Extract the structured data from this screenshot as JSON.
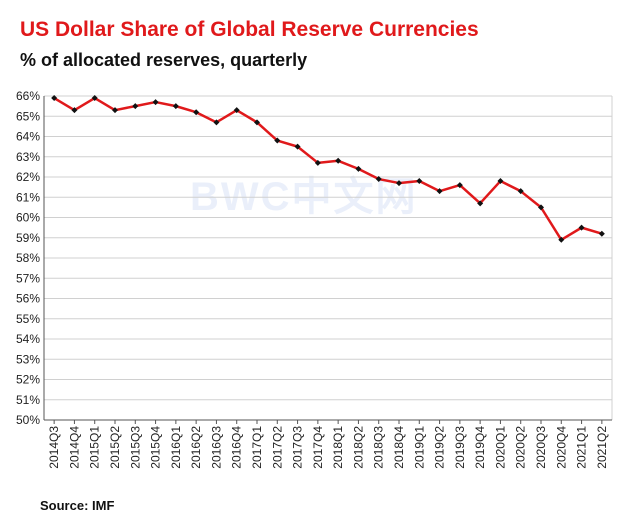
{
  "header": {
    "title": "US Dollar Share of Global  Reserve Currencies",
    "subtitle": "% of allocated reserves, quarterly"
  },
  "footer": {
    "source": "Source: IMF"
  },
  "watermark": "BWC中文网",
  "colors": {
    "title": "#e0191b",
    "line": "#e0191b",
    "marker": "#111111",
    "grid": "#d0d0d0"
  },
  "chart_data": {
    "type": "line",
    "title": "US Dollar Share of Global  Reserve Currencies",
    "subtitle": "% of allocated reserves, quarterly",
    "xlabel": "",
    "ylabel": "",
    "ylim": [
      50,
      66
    ],
    "yticks": [
      "50%",
      "51%",
      "52%",
      "53%",
      "54%",
      "55%",
      "56%",
      "57%",
      "58%",
      "59%",
      "60%",
      "61%",
      "62%",
      "63%",
      "64%",
      "65%",
      "66%"
    ],
    "grid": true,
    "legend": "none",
    "categories": [
      "2014Q3",
      "2014Q4",
      "2015Q1",
      "2015Q2",
      "2015Q3",
      "2015Q4",
      "2016Q1",
      "2016Q2",
      "2016Q3",
      "2016Q4",
      "2017Q1",
      "2017Q2",
      "2017Q3",
      "2017Q4",
      "2018Q1",
      "2018Q2",
      "2018Q3",
      "2018Q4",
      "2019Q1",
      "2019Q2",
      "2019Q3",
      "2019Q4",
      "2020Q1",
      "2020Q2",
      "2020Q3",
      "2020Q4",
      "2021Q1",
      "2021Q2"
    ],
    "visible_tick_labels": [
      "2014Q3",
      "2014Q4",
      "2015Q1",
      "2015Q2",
      "2015Q3",
      "2015Q4",
      "2016Q1",
      "2016Q2",
      "2016Q3",
      "2016Q4",
      "2017Q1",
      "2017Q2",
      "2017Q3",
      "2017Q4",
      "2018Q1",
      "2018Q2",
      "2018Q3",
      "2018Q4",
      "2019Q1",
      "2019Q2",
      "2019Q3",
      "2019Q4",
      "2020Q1",
      "2020Q2",
      "2020Q3",
      "2020Q4",
      "2021Q1",
      "2021Q2"
    ],
    "series": [
      {
        "values": [
          65.9,
          65.3,
          65.9,
          65.3,
          65.5,
          65.7,
          65.5,
          65.2,
          64.7,
          65.3,
          64.7,
          63.8,
          63.5,
          62.7,
          62.8,
          62.4,
          61.9,
          61.7,
          61.8,
          61.3,
          61.6,
          60.7,
          61.8,
          61.3,
          60.5,
          58.9,
          59.5,
          59.2
        ]
      }
    ]
  }
}
